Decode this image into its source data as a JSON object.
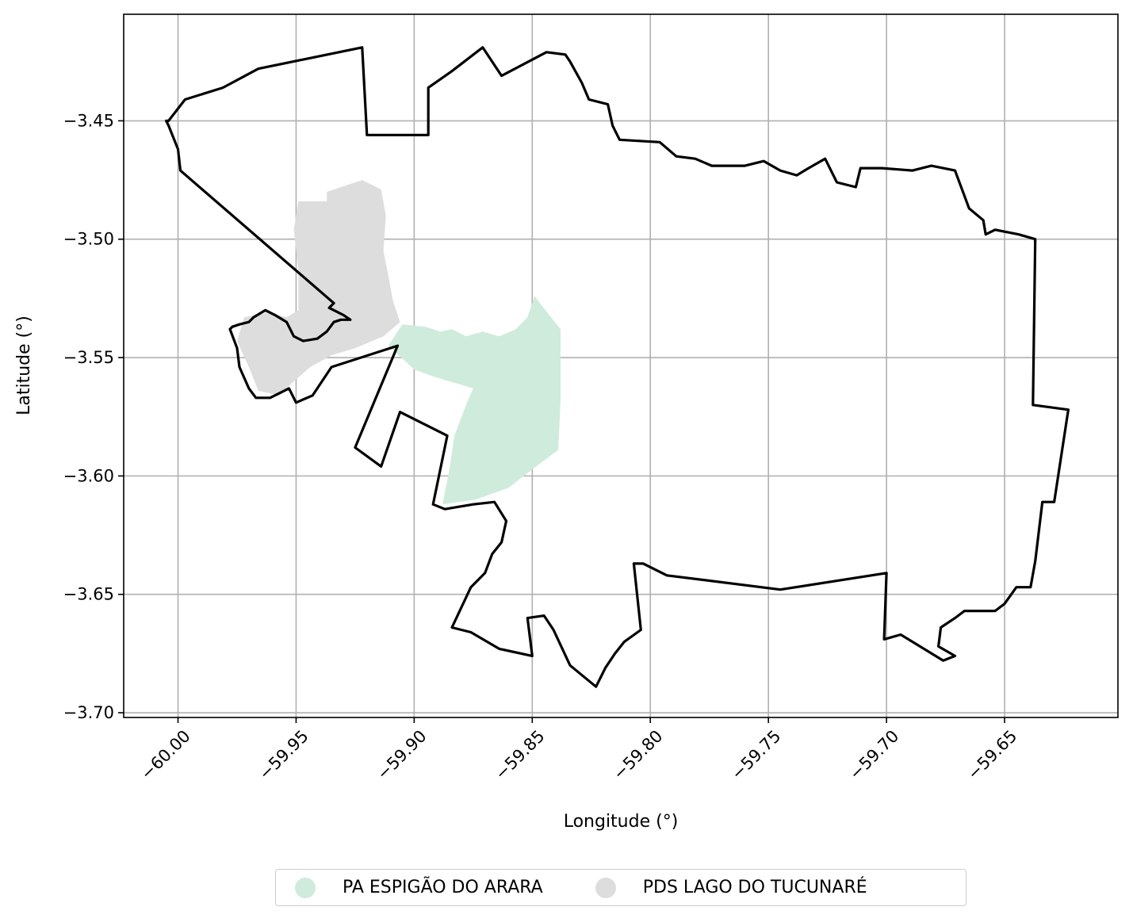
{
  "map": {
    "xlabel": "Longitude (°)",
    "ylabel": "Latitude (°)",
    "xlim": [
      -60.023,
      -59.602
    ],
    "ylim": [
      -3.702,
      -3.405
    ],
    "x_ticks": [
      -60.0,
      -59.95,
      -59.9,
      -59.85,
      -59.8,
      -59.75,
      -59.7,
      -59.65
    ],
    "x_tick_labels": [
      "−60.00",
      "−59.95",
      "−59.90",
      "−59.85",
      "−59.80",
      "−59.75",
      "−59.70",
      "−59.65"
    ],
    "y_ticks": [
      -3.45,
      -3.5,
      -3.55,
      -3.6,
      -3.65,
      -3.7
    ],
    "y_tick_labels": [
      "−3.45",
      "−3.50",
      "−3.55",
      "−3.60",
      "−3.65",
      "−3.70"
    ],
    "grid": true,
    "legend_position": "bottom-center",
    "areas": [
      {
        "name": "PA ESPIGÃO DO ARARA",
        "color": "#cfebdc",
        "coords": [
          [
            -59.905,
            -3.536
          ],
          [
            -59.895,
            -3.537
          ],
          [
            -59.889,
            -3.539
          ],
          [
            -59.884,
            -3.538
          ],
          [
            -59.878,
            -3.541
          ],
          [
            -59.871,
            -3.539
          ],
          [
            -59.864,
            -3.541
          ],
          [
            -59.857,
            -3.538
          ],
          [
            -59.852,
            -3.533
          ],
          [
            -59.849,
            -3.524
          ],
          [
            -59.846,
            -3.528
          ],
          [
            -59.838,
            -3.538
          ],
          [
            -59.838,
            -3.568
          ],
          [
            -59.839,
            -3.589
          ],
          [
            -59.851,
            -3.598
          ],
          [
            -59.86,
            -3.605
          ],
          [
            -59.874,
            -3.61
          ],
          [
            -59.888,
            -3.612
          ],
          [
            -59.885,
            -3.597
          ],
          [
            -59.883,
            -3.583
          ],
          [
            -59.878,
            -3.57
          ],
          [
            -59.875,
            -3.563
          ],
          [
            -59.892,
            -3.558
          ],
          [
            -59.9,
            -3.555
          ],
          [
            -59.911,
            -3.545
          ]
        ]
      },
      {
        "name": "PDS LAGO DO TUCUNARÉ",
        "color": "#dddddd",
        "coords": [
          [
            -59.949,
            -3.484
          ],
          [
            -59.937,
            -3.484
          ],
          [
            -59.937,
            -3.48
          ],
          [
            -59.922,
            -3.475
          ],
          [
            -59.914,
            -3.479
          ],
          [
            -59.912,
            -3.49
          ],
          [
            -59.913,
            -3.505
          ],
          [
            -59.911,
            -3.515
          ],
          [
            -59.909,
            -3.526
          ],
          [
            -59.906,
            -3.535
          ],
          [
            -59.913,
            -3.541
          ],
          [
            -59.925,
            -3.546
          ],
          [
            -59.935,
            -3.549
          ],
          [
            -59.944,
            -3.554
          ],
          [
            -59.952,
            -3.561
          ],
          [
            -59.957,
            -3.566
          ],
          [
            -59.966,
            -3.564
          ],
          [
            -59.97,
            -3.554
          ],
          [
            -59.975,
            -3.543
          ],
          [
            -59.972,
            -3.533
          ],
          [
            -59.962,
            -3.531
          ],
          [
            -59.954,
            -3.533
          ],
          [
            -59.949,
            -3.53
          ],
          [
            -59.949,
            -3.513
          ],
          [
            -59.951,
            -3.496
          ]
        ]
      }
    ],
    "boundary": {
      "color": "#000000",
      "coords": [
        [
          -60.004,
          -3.45
        ],
        [
          -59.997,
          -3.441
        ],
        [
          -59.981,
          -3.436
        ],
        [
          -59.966,
          -3.428
        ],
        [
          -59.922,
          -3.419
        ],
        [
          -59.92,
          -3.456
        ],
        [
          -59.894,
          -3.456
        ],
        [
          -59.894,
          -3.436
        ],
        [
          -59.884,
          -3.429
        ],
        [
          -59.871,
          -3.419
        ],
        [
          -59.863,
          -3.431
        ],
        [
          -59.844,
          -3.421
        ],
        [
          -59.836,
          -3.422
        ],
        [
          -59.834,
          -3.425
        ],
        [
          -59.829,
          -3.434
        ],
        [
          -59.826,
          -3.441
        ],
        [
          -59.818,
          -3.443
        ],
        [
          -59.816,
          -3.452
        ],
        [
          -59.813,
          -3.458
        ],
        [
          -59.796,
          -3.459
        ],
        [
          -59.789,
          -3.465
        ],
        [
          -59.781,
          -3.466
        ],
        [
          -59.774,
          -3.469
        ],
        [
          -59.76,
          -3.469
        ],
        [
          -59.752,
          -3.467
        ],
        [
          -59.745,
          -3.471
        ],
        [
          -59.738,
          -3.473
        ],
        [
          -59.733,
          -3.47
        ],
        [
          -59.726,
          -3.466
        ],
        [
          -59.721,
          -3.476
        ],
        [
          -59.713,
          -3.478
        ],
        [
          -59.711,
          -3.47
        ],
        [
          -59.702,
          -3.47
        ],
        [
          -59.689,
          -3.471
        ],
        [
          -59.681,
          -3.469
        ],
        [
          -59.671,
          -3.471
        ],
        [
          -59.665,
          -3.487
        ],
        [
          -59.659,
          -3.492
        ],
        [
          -59.658,
          -3.498
        ],
        [
          -59.654,
          -3.496
        ],
        [
          -59.644,
          -3.498
        ],
        [
          -59.637,
          -3.5
        ],
        [
          -59.638,
          -3.57
        ],
        [
          -59.623,
          -3.572
        ],
        [
          -59.629,
          -3.611
        ],
        [
          -59.634,
          -3.611
        ],
        [
          -59.637,
          -3.636
        ],
        [
          -59.639,
          -3.647
        ],
        [
          -59.645,
          -3.647
        ],
        [
          -59.65,
          -3.654
        ],
        [
          -59.654,
          -3.657
        ],
        [
          -59.667,
          -3.657
        ],
        [
          -59.671,
          -3.66
        ],
        [
          -59.677,
          -3.664
        ],
        [
          -59.678,
          -3.672
        ],
        [
          -59.671,
          -3.676
        ],
        [
          -59.676,
          -3.678
        ],
        [
          -59.694,
          -3.667
        ],
        [
          -59.701,
          -3.669
        ],
        [
          -59.7,
          -3.641
        ],
        [
          -59.745,
          -3.648
        ],
        [
          -59.793,
          -3.642
        ],
        [
          -59.803,
          -3.637
        ],
        [
          -59.807,
          -3.637
        ],
        [
          -59.804,
          -3.665
        ],
        [
          -59.811,
          -3.67
        ],
        [
          -59.815,
          -3.675
        ],
        [
          -59.819,
          -3.681
        ],
        [
          -59.823,
          -3.689
        ],
        [
          -59.834,
          -3.68
        ],
        [
          -59.841,
          -3.665
        ],
        [
          -59.845,
          -3.659
        ],
        [
          -59.852,
          -3.66
        ],
        [
          -59.85,
          -3.676
        ],
        [
          -59.864,
          -3.673
        ],
        [
          -59.876,
          -3.666
        ],
        [
          -59.884,
          -3.664
        ],
        [
          -59.876,
          -3.647
        ],
        [
          -59.87,
          -3.641
        ],
        [
          -59.867,
          -3.633
        ],
        [
          -59.863,
          -3.628
        ],
        [
          -59.861,
          -3.619
        ],
        [
          -59.866,
          -3.611
        ],
        [
          -59.875,
          -3.612
        ],
        [
          -59.887,
          -3.614
        ],
        [
          -59.892,
          -3.612
        ],
        [
          -59.886,
          -3.583
        ],
        [
          -59.906,
          -3.573
        ],
        [
          -59.914,
          -3.596
        ],
        [
          -59.925,
          -3.588
        ],
        [
          -59.907,
          -3.545
        ],
        [
          -59.935,
          -3.554
        ],
        [
          -59.943,
          -3.566
        ],
        [
          -59.95,
          -3.569
        ],
        [
          -59.953,
          -3.563
        ],
        [
          -59.961,
          -3.567
        ],
        [
          -59.967,
          -3.567
        ],
        [
          -59.97,
          -3.563
        ],
        [
          -59.974,
          -3.554
        ],
        [
          -59.975,
          -3.546
        ],
        [
          -59.978,
          -3.538
        ],
        [
          -59.977,
          -3.537
        ],
        [
          -59.974,
          -3.536
        ],
        [
          -59.97,
          -3.535
        ],
        [
          -59.968,
          -3.533
        ],
        [
          -59.963,
          -3.53
        ],
        [
          -59.959,
          -3.532
        ],
        [
          -59.954,
          -3.535
        ],
        [
          -59.951,
          -3.541
        ],
        [
          -59.947,
          -3.543
        ],
        [
          -59.941,
          -3.542
        ],
        [
          -59.937,
          -3.539
        ],
        [
          -59.934,
          -3.535
        ],
        [
          -59.931,
          -3.534
        ],
        [
          -59.927,
          -3.534
        ],
        [
          -59.93,
          -3.532
        ],
        [
          -59.936,
          -3.529
        ],
        [
          -59.934,
          -3.527
        ],
        [
          -59.999,
          -3.471
        ],
        [
          -60.0,
          -3.462
        ],
        [
          -60.004,
          -3.452
        ],
        [
          -60.005,
          -3.45
        ]
      ]
    }
  }
}
